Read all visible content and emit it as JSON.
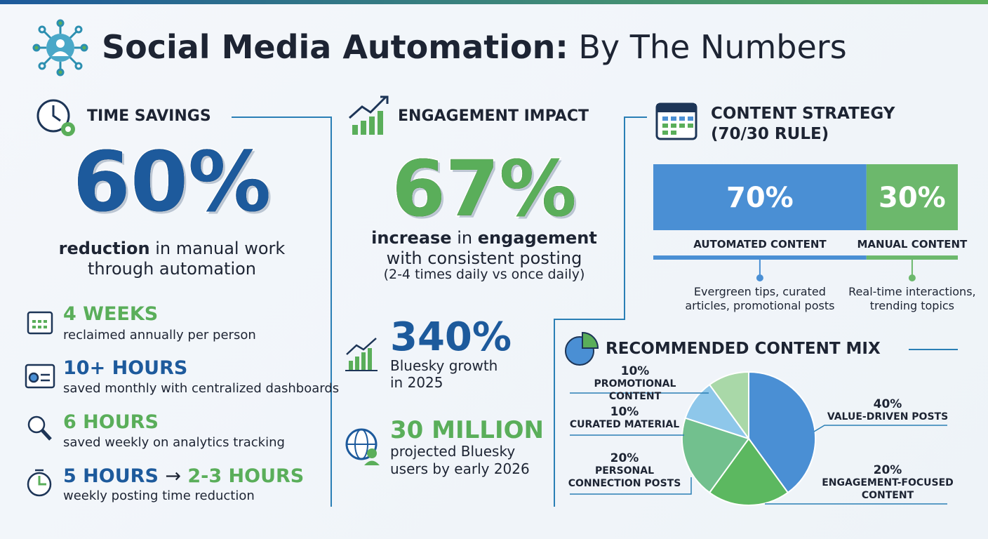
{
  "header": {
    "title_bold": "Social Media Automation:",
    "title_light": "By The Numbers"
  },
  "time_savings": {
    "heading": "TIME SAVINGS",
    "big_stat": "60%",
    "caption_bold": "reduction",
    "caption_rest": "in manual work through automation",
    "items": [
      {
        "title": "4 WEEKS",
        "text": "reclaimed annually per person"
      },
      {
        "title": "10+ HOURS",
        "text": "saved monthly with centralized dashboards"
      },
      {
        "title": "6 HOURS",
        "text": "saved weekly on analytics tracking"
      },
      {
        "title": "5 HOURS",
        "arrow": "→",
        "title_to": "2-3 HOURS",
        "text": "weekly posting time reduction"
      }
    ]
  },
  "engagement": {
    "heading": "ENGAGEMENT IMPACT",
    "big_stat": "67%",
    "caption_bold_1": "increase",
    "caption_mid": "in",
    "caption_bold_2": "engagement",
    "caption_rest": "with consistent posting",
    "note": "(2-4 times daily vs once daily)",
    "stats": [
      {
        "value": "340%",
        "text": "Bluesky growth in 2025"
      },
      {
        "value": "30 MILLION",
        "text": "projected Bluesky users by early 2026"
      }
    ]
  },
  "strategy": {
    "heading_1": "CONTENT STRATEGY",
    "heading_2": "(70/30 RULE)",
    "split": {
      "type": "bar",
      "categories": [
        "AUTOMATED CONTENT",
        "MANUAL CONTENT"
      ],
      "values": [
        70,
        30
      ],
      "value_labels": [
        "70%",
        "30%"
      ],
      "colors": [
        "#4a8fd4",
        "#6cb86c"
      ],
      "descriptions": [
        "Evergreen tips, curated articles, promotional posts",
        "Real-time interactions, trending topics"
      ]
    }
  },
  "content_mix": {
    "heading": "RECOMMENDED CONTENT MIX",
    "chart": {
      "type": "pie",
      "categories": [
        "VALUE-DRIVEN POSTS",
        "ENGAGEMENT-FOCUSED CONTENT",
        "PERSONAL CONNECTION POSTS",
        "CURATED MATERIAL",
        "PROMOTIONAL CONTENT"
      ],
      "values": [
        40,
        20,
        20,
        10,
        10
      ],
      "value_labels": [
        "40%",
        "20%",
        "20%",
        "10%",
        "10%"
      ],
      "colors": [
        "#4a8fd4",
        "#5cb860",
        "#72c08e",
        "#8ec7ea",
        "#a9d8a8"
      ]
    }
  }
}
